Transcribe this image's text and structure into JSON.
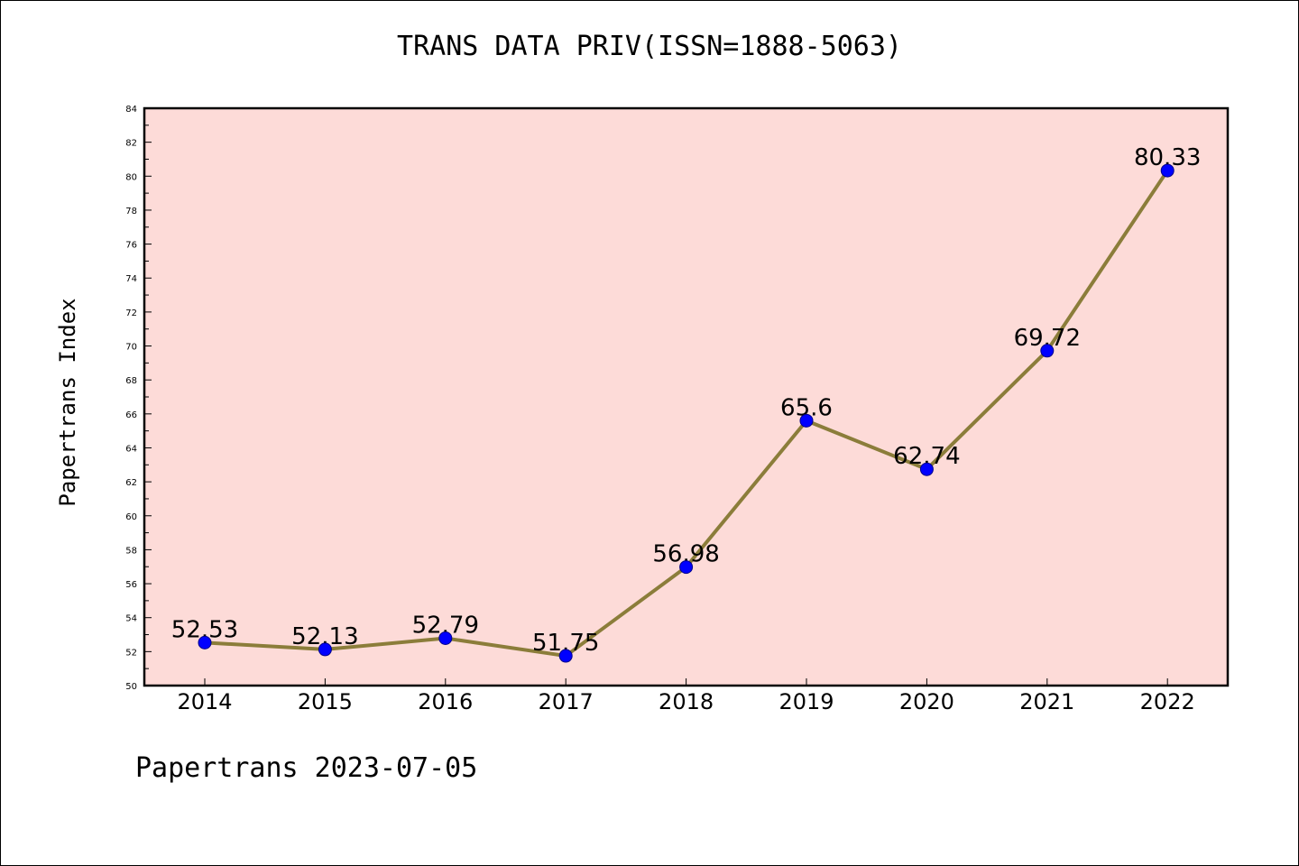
{
  "title": "TRANS DATA PRIV(ISSN=1888-5063)",
  "footer": "Papertrans 2023-07-05",
  "colors": {
    "plot_background": "#fddbd8",
    "line": "#8b7d3a",
    "marker": "#0000ff"
  },
  "chart_data": {
    "type": "line",
    "title": "TRANS DATA PRIV(ISSN=1888-5063)",
    "xlabel": "",
    "ylabel": "Papertrans Index",
    "ylim": [
      50,
      84
    ],
    "yticks": [
      50,
      52,
      54,
      56,
      58,
      60,
      62,
      64,
      66,
      68,
      70,
      72,
      74,
      76,
      78,
      80,
      82,
      84
    ],
    "grid": false,
    "legend": "none",
    "categories": [
      "2014",
      "2015",
      "2016",
      "2017",
      "2018",
      "2019",
      "2020",
      "2021",
      "2022"
    ],
    "series": [
      {
        "values": [
          52.53,
          52.13,
          52.79,
          51.75,
          56.98,
          65.6,
          62.74,
          69.72,
          80.33
        ],
        "labels": [
          "52.53",
          "52.13",
          "52.79",
          "51.75",
          "56.98",
          "65.6",
          "62.74",
          "69.72",
          "80.33"
        ]
      }
    ]
  }
}
